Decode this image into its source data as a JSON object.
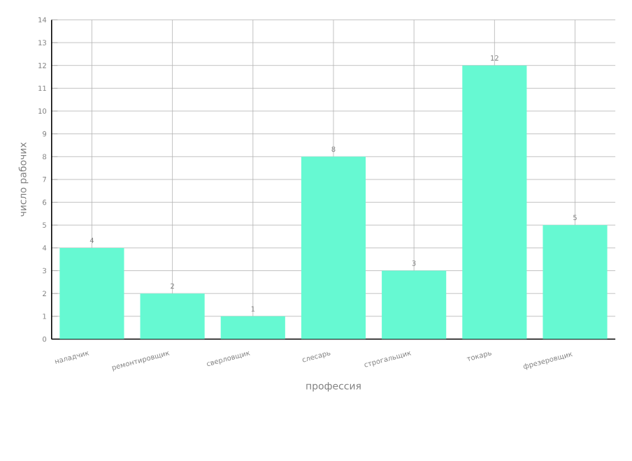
{
  "chart_data": {
    "type": "bar",
    "xlabel": "профессия",
    "ylabel": "число рабочих",
    "categories": [
      "наладчик",
      "ремонтировщик",
      "сверловщик",
      "слесарь",
      "строгальщик",
      "токарь",
      "фрезеровщик"
    ],
    "values": [
      4,
      2,
      1,
      8,
      3,
      12,
      5
    ],
    "color": "#66f9d2",
    "ylim": [
      0,
      14
    ],
    "yticks": [
      0,
      1,
      2,
      3,
      4,
      5,
      6,
      7,
      8,
      9,
      10,
      11,
      12,
      13,
      14
    ],
    "grid": true,
    "data_labels": true
  }
}
